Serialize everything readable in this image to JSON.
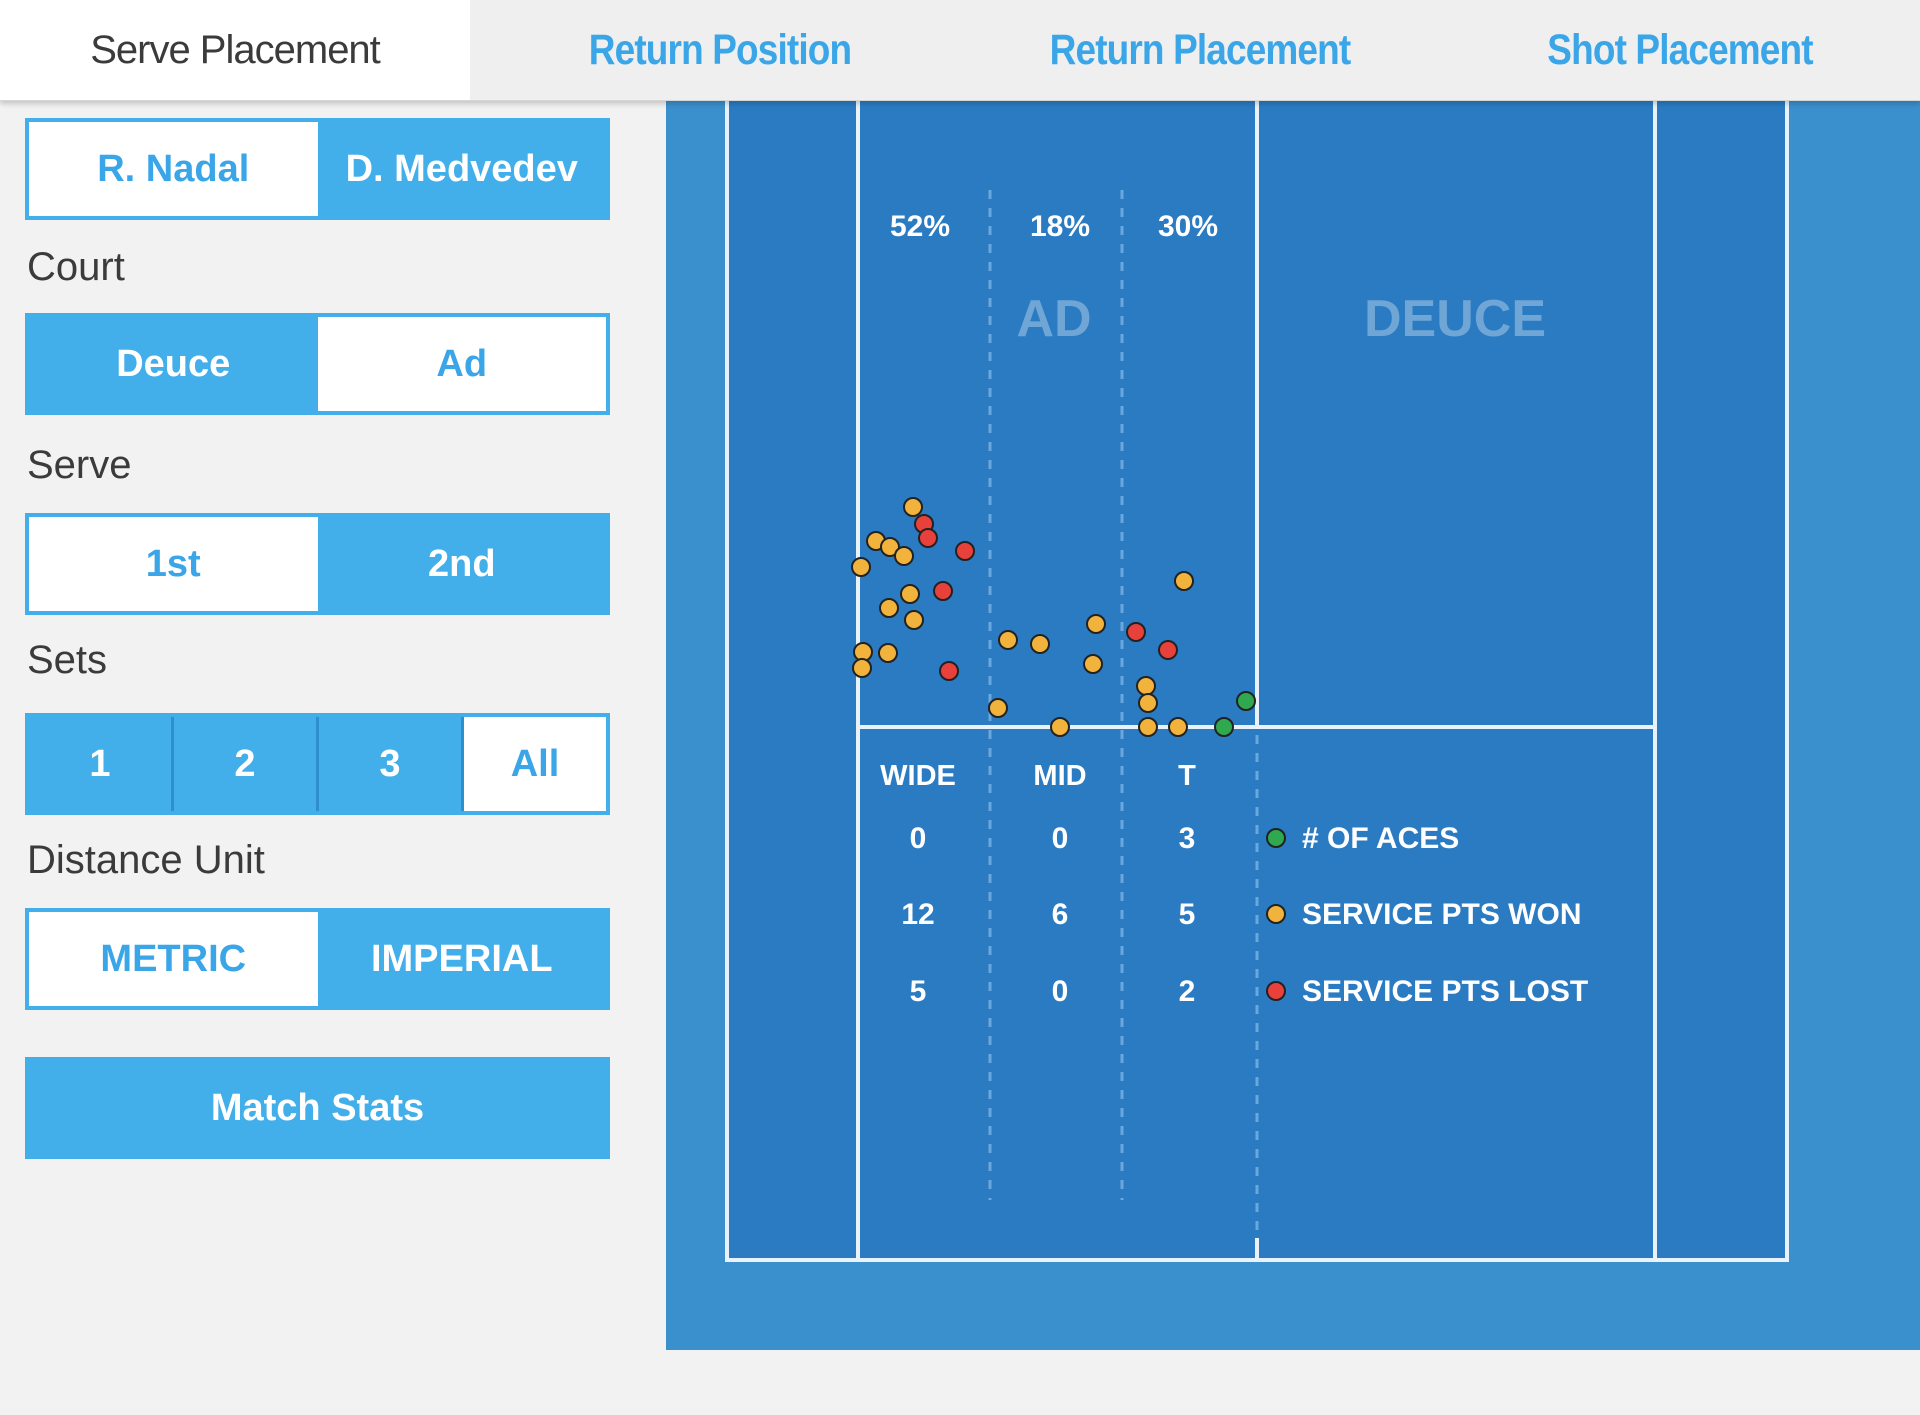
{
  "tabs": [
    {
      "label": "Serve Placement"
    },
    {
      "label": "Return Position"
    },
    {
      "label": "Return Placement"
    },
    {
      "label": "Shot Placement"
    }
  ],
  "players": [
    "R. Nadal",
    "D. Medvedev"
  ],
  "court_label": "Court",
  "court_options": [
    "Deuce",
    "Ad"
  ],
  "serve_label": "Serve",
  "serve_options": [
    "1st",
    "2nd"
  ],
  "sets_label": "Sets",
  "sets_options": [
    "1",
    "2",
    "3",
    "All"
  ],
  "distance_label": "Distance Unit",
  "distance_options": [
    "METRIC",
    "IMPERIAL"
  ],
  "match_stats_label": "Match Stats",
  "court": {
    "zone_pcts": [
      "52%",
      "18%",
      "30%"
    ],
    "side_ad": "AD",
    "side_deuce": "DEUCE",
    "col_headers": [
      "WIDE",
      "MID",
      "T"
    ],
    "rows": [
      {
        "values": [
          "0",
          "0",
          "3"
        ],
        "label": "# OF ACES",
        "color": "#2fa84f"
      },
      {
        "values": [
          "12",
          "6",
          "5"
        ],
        "label": "SERVICE PTS WON",
        "color": "#f2b33d"
      },
      {
        "values": [
          "5",
          "0",
          "2"
        ],
        "label": "SERVICE PTS LOST",
        "color": "#e8403a"
      }
    ]
  },
  "colors": {
    "accent": "#42aeea",
    "court_bg": "#2b7bc3",
    "court_outer": "#3a90cc"
  }
}
